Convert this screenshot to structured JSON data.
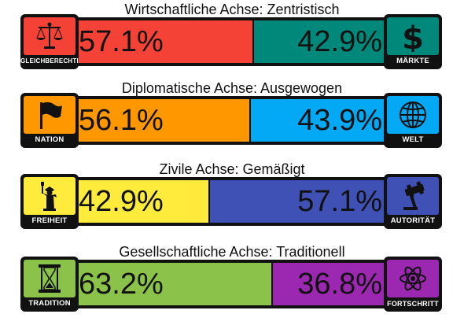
{
  "axes": [
    {
      "title": "Wirtschaftliche Achse: Zentristisch",
      "left": {
        "label": "GLEICHBERECHTIGUNG",
        "percent_text": "57.1%",
        "value": 57.1,
        "color": "#f44336",
        "icon": "scales-icon"
      },
      "right": {
        "label": "MÄRKTE",
        "percent_text": "42.9%",
        "value": 42.9,
        "color": "#00897b",
        "icon": "dollar-icon"
      }
    },
    {
      "title": "Diplomatische Achse: Ausgewogen",
      "left": {
        "label": "NATION",
        "percent_text": "56.1%",
        "value": 56.1,
        "color": "#ff9800",
        "icon": "flag-icon"
      },
      "right": {
        "label": "WELT",
        "percent_text": "43.9%",
        "value": 43.9,
        "color": "#03a9f4",
        "icon": "globe-icon"
      }
    },
    {
      "title": "Zivile Achse: Gemäßigt",
      "left": {
        "label": "FREIHEIT",
        "percent_text": "42.9%",
        "value": 42.9,
        "color": "#ffeb3b",
        "icon": "statue-of-liberty-icon"
      },
      "right": {
        "label": "AUTORITÄT",
        "percent_text": "57.1%",
        "value": 57.1,
        "color": "#3f51b5",
        "icon": "gavel-icon"
      }
    },
    {
      "title": "Gesellschaftliche Achse: Traditionell",
      "left": {
        "label": "TRADITION",
        "percent_text": "63.2%",
        "value": 63.2,
        "color": "#8bc34a",
        "icon": "hourglass-icon"
      },
      "right": {
        "label": "FORTSCHRITT",
        "percent_text": "36.8%",
        "value": 36.8,
        "color": "#9c27b0",
        "icon": "atom-icon"
      }
    }
  ]
}
